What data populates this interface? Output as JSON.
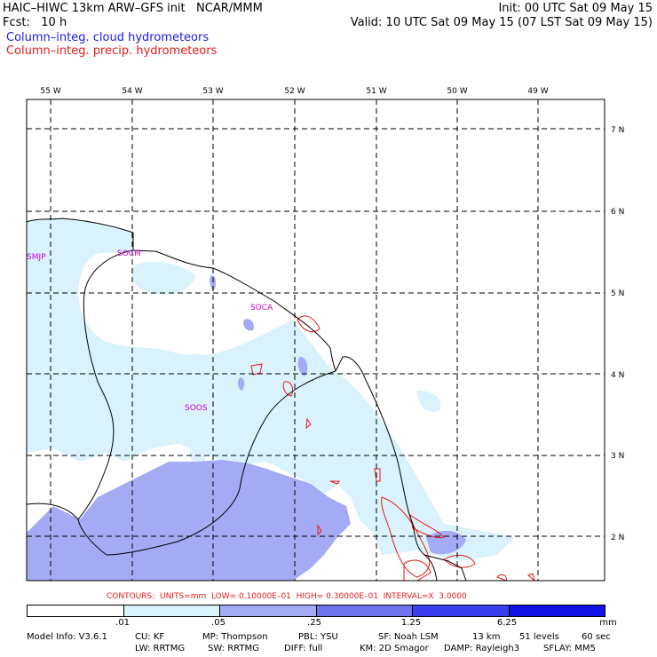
{
  "header": {
    "title": "HAIC–HIWC 13km ARW–GFS init   NCAR/MMM",
    "init": "Init: 00 UTC Sat 09 May 15",
    "fcst": "Fcst:   10 h",
    "valid": "Valid: 10 UTC Sat 09 May 15 (07 LST Sat 09 May 15)",
    "legend_cloud": "Column–integ. cloud hydrometeors",
    "legend_precip": "Column–integ. precip. hydrometeors"
  },
  "map": {
    "lon_labels": [
      "55 W",
      "54 W",
      "53 W",
      "52 W",
      "51 W",
      "50 W",
      "49 W"
    ],
    "lat_labels": [
      "7 N",
      "6 N",
      "5 N",
      "4 N",
      "3 N",
      "2 N"
    ],
    "stations": [
      "SMJP",
      "SOCM",
      "SOCA",
      "SOOS"
    ],
    "colors": {
      "cloud_lightest": "#d9f2fb",
      "cloud_light": "#a0a8f6",
      "cloud_mid": "#8f96ee",
      "precip_contour": "#e61a1a",
      "coast": "#000000",
      "grid": "#000000"
    }
  },
  "contours_text": "CONTOURS:  UNITS=mm  LOW= 0.10000E–01  HIGH= 0.30000E–01  INTERVAL=X  3.0000",
  "colorbar": {
    "labels": [
      ".01",
      ".05",
      ".25",
      "1.25",
      "6.25",
      "mm"
    ],
    "colors": [
      "#ffffff",
      "#d9f2fb",
      "#a5aaf5",
      "#6f74ee",
      "#3b3ff0",
      "#1111e6"
    ]
  },
  "model_info": {
    "line1": [
      "Model Info: V3.6.1",
      "CU: KF",
      "MP: Thompson",
      "PBL: YSU",
      "SF: Noah LSM",
      "13 km",
      "51 levels",
      "60 sec"
    ],
    "line2": [
      "LW: RRTMG",
      "SW: RRTMG",
      "DIFF: full",
      "KM: 2D Smagor",
      "DAMP: Rayleigh3",
      "SFLAY: MM5"
    ]
  }
}
